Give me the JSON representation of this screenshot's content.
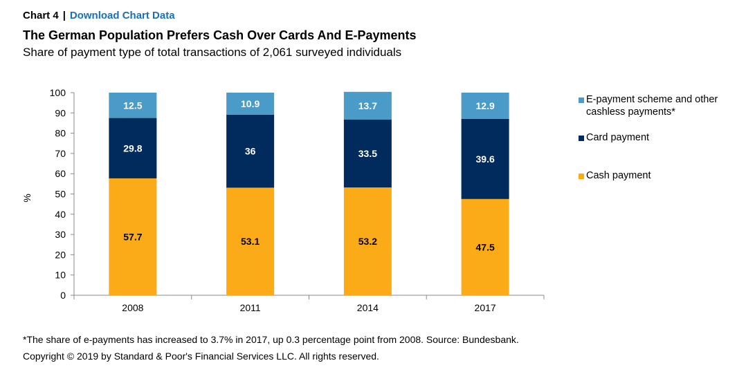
{
  "header": {
    "chart_number": "Chart 4",
    "separator": "|",
    "download_link": "Download Chart Data"
  },
  "title": "The German Population Prefers Cash Over Cards And E-Payments",
  "subtitle": "Share of payment type of total transactions of 2,061 surveyed individuals",
  "footnote": "*The share of e-payments has increased to 3.7% in 2017, up 0.3 percentage point from 2008. Source: Bundesbank.",
  "copyright": "Copyright © 2019 by Standard & Poor's Financial Services LLC. All rights reserved.",
  "chart_data": {
    "type": "bar",
    "stacked": true,
    "categories": [
      "2008",
      "2011",
      "2014",
      "2017"
    ],
    "series": [
      {
        "name": "Cash payment",
        "values": [
          57.7,
          53.1,
          53.2,
          47.5
        ],
        "color": "#fbab18",
        "label_color": "#000000"
      },
      {
        "name": "Card payment",
        "values": [
          29.8,
          36,
          33.5,
          39.6
        ],
        "color": "#002b5c",
        "label_color": "#ffffff"
      },
      {
        "name": "E-payment scheme and other cashless payments*",
        "values": [
          12.5,
          10.9,
          13.7,
          12.9
        ],
        "color": "#4a9bc7",
        "label_color": "#ffffff"
      }
    ],
    "legend_order": [
      2,
      1,
      0
    ],
    "ylabel": "%",
    "ylim": [
      0,
      100
    ],
    "yticks": [
      0,
      10,
      20,
      30,
      40,
      50,
      60,
      70,
      80,
      90,
      100
    ],
    "legend_position": "right",
    "grid": false
  }
}
